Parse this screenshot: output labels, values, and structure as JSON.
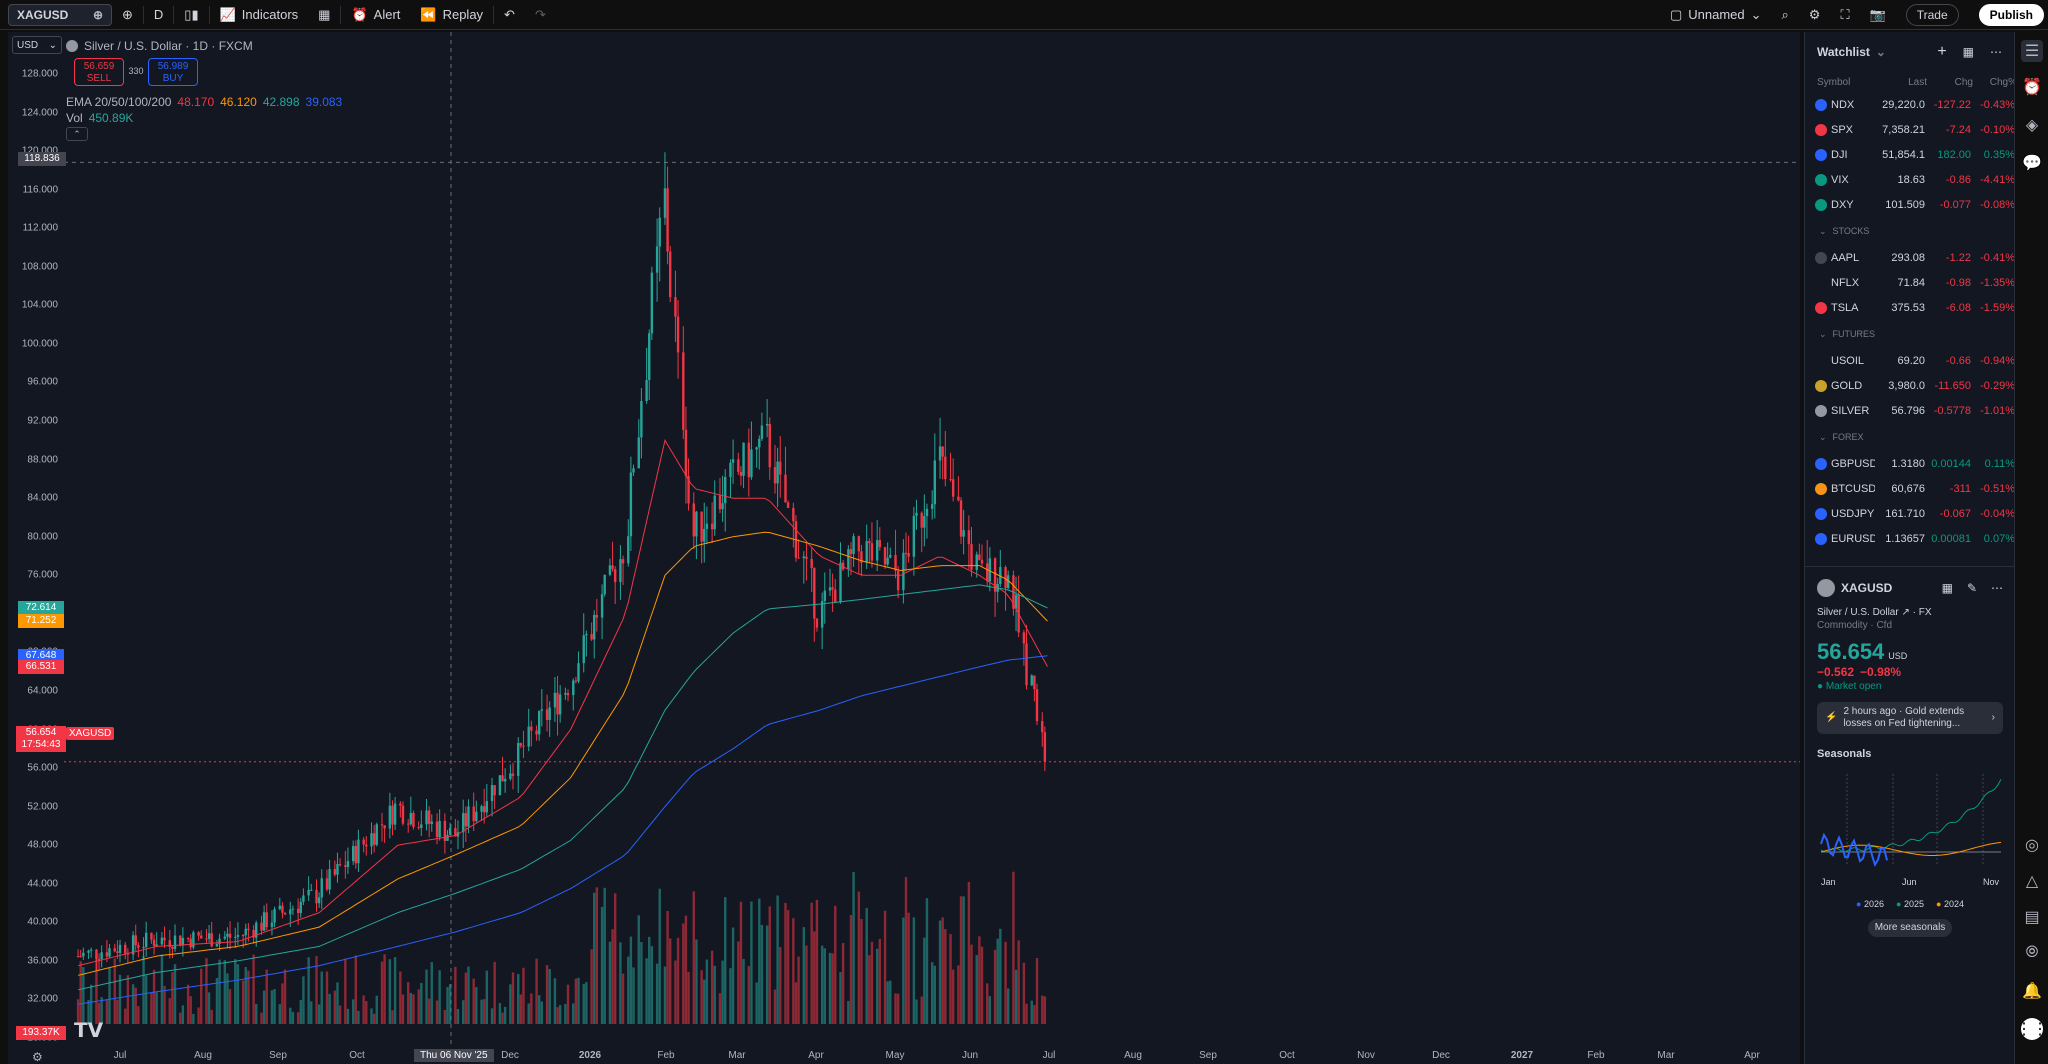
{
  "toolbar": {
    "symbol": "XAGUSD",
    "interval": "D",
    "indicators_label": "Indicators",
    "alert_label": "Alert",
    "replay_label": "Replay",
    "layout_name": "Unnamed",
    "trade_label": "Trade",
    "publish_label": "Publish"
  },
  "chart": {
    "currency_select": "USD",
    "title": "Silver / U.S. Dollar · 1D · FXCM",
    "sell_price": "56.659",
    "sell_label": "SELL",
    "spread": "330",
    "buy_price": "56.989",
    "buy_label": "BUY",
    "ema_label": "EMA 20/50/100/200",
    "ema_values": [
      "48.170",
      "46.120",
      "42.898",
      "39.083"
    ],
    "ema_colors": [
      "#f23645",
      "#ff9800",
      "#26a69a",
      "#2962ff"
    ],
    "vol_label": "Vol",
    "vol_value": "450.89K",
    "crosshair_price": "118.836",
    "crosshair_date": "Thu 06 Nov '25",
    "last_price": "56.654",
    "last_countdown": "17:54:43",
    "last_symbol": "XAGUSD",
    "tags": [
      {
        "value": "72.614",
        "color": "#26a69a"
      },
      {
        "value": "71.252",
        "color": "#ff9800"
      },
      {
        "value": "67.648",
        "color": "#2962ff"
      },
      {
        "value": "66.531",
        "color": "#f23645"
      }
    ],
    "vol_tag": "193.37K",
    "y_ticks": [
      "128.000",
      "124.000",
      "120.000",
      "116.000",
      "112.000",
      "108.000",
      "104.000",
      "100.000",
      "96.000",
      "92.000",
      "88.000",
      "84.000",
      "80.000",
      "76.000",
      "72.000",
      "68.000",
      "64.000",
      "60.000",
      "56.000",
      "52.000",
      "48.000",
      "44.000",
      "40.000",
      "36.000",
      "32.000",
      "28.000"
    ],
    "x_ticks": [
      "Jul",
      "Aug",
      "Sep",
      "Oct",
      "Dec",
      "2026",
      "Feb",
      "Mar",
      "Apr",
      "May",
      "Jun",
      "Jul",
      "Aug",
      "Sep",
      "Oct",
      "Nov",
      "Dec",
      "2027",
      "Feb",
      "Mar",
      "Apr"
    ]
  },
  "chart_data": {
    "type": "line",
    "title": "Silver / U.S. Dollar · 1D · FXCM",
    "x": [
      "2025-06-15",
      "2025-07-15",
      "2025-08-15",
      "2025-09-15",
      "2025-10-15",
      "2025-11-06",
      "2025-12-01",
      "2025-12-20",
      "2026-01-10",
      "2026-01-25",
      "2026-02-05",
      "2026-02-20",
      "2026-03-05",
      "2026-03-25",
      "2026-04-10",
      "2026-04-25",
      "2026-05-10",
      "2026-05-25",
      "2026-06-05",
      "2026-06-20"
    ],
    "series": [
      {
        "name": "XAGUSD",
        "values": [
          36.5,
          38.2,
          38.5,
          43.0,
          52.0,
          49.0,
          57.5,
          65.0,
          79.0,
          115.0,
          80.0,
          86.0,
          90.0,
          72.0,
          79.0,
          76.0,
          88.0,
          76.0,
          76.5,
          56.654
        ]
      },
      {
        "name": "EMA 20",
        "values": [
          35.5,
          37.5,
          38.0,
          41.0,
          48.0,
          49.0,
          53.0,
          60.0,
          72.0,
          90.0,
          85.0,
          84.0,
          84.0,
          78.0,
          76.0,
          76.0,
          78.0,
          76.0,
          74.0,
          66.531
        ]
      },
      {
        "name": "EMA 50",
        "values": [
          34.5,
          36.5,
          37.5,
          39.5,
          44.5,
          47.0,
          50.0,
          55.0,
          64.0,
          76.0,
          79.0,
          80.0,
          80.5,
          79.0,
          77.5,
          76.5,
          77.0,
          77.0,
          75.5,
          71.252
        ]
      },
      {
        "name": "EMA 100",
        "values": [
          33.0,
          34.8,
          36.0,
          37.5,
          41.0,
          43.0,
          45.5,
          48.5,
          54.0,
          62.0,
          66.0,
          70.0,
          72.5,
          73.0,
          73.5,
          74.0,
          74.5,
          75.0,
          74.5,
          72.614
        ]
      },
      {
        "name": "EMA 200",
        "values": [
          31.5,
          32.8,
          34.0,
          35.5,
          37.5,
          39.0,
          41.0,
          43.5,
          47.0,
          52.0,
          55.5,
          58.0,
          60.5,
          62.0,
          63.5,
          64.5,
          65.5,
          66.5,
          67.2,
          67.648
        ]
      }
    ],
    "ylim": [
      26,
      130
    ],
    "ylabel": "USD",
    "grid": false,
    "legend": "top-left"
  },
  "watchlist": {
    "title": "Watchlist",
    "columns": [
      "Symbol",
      "Last",
      "Chg",
      "Chg%"
    ],
    "indices": [
      {
        "sym": "NDX",
        "last": "29,220.0",
        "chg": "-127.22",
        "pct": "-0.43%",
        "up": false,
        "color": "#2962ff"
      },
      {
        "sym": "SPX",
        "last": "7,358.21",
        "chg": "-7.24",
        "pct": "-0.10%",
        "up": false,
        "color": "#f23645"
      },
      {
        "sym": "DJI",
        "last": "51,854.1",
        "chg": "182.00",
        "pct": "0.35%",
        "up": true,
        "color": "#2962ff"
      },
      {
        "sym": "VIX",
        "last": "18.63",
        "chg": "-0.86",
        "pct": "-4.41%",
        "up": false,
        "color": "#089981"
      },
      {
        "sym": "DXY",
        "last": "101.509",
        "chg": "-0.077",
        "pct": "-0.08%",
        "up": false,
        "color": "#089981"
      }
    ],
    "stocks_label": "STOCKS",
    "stocks": [
      {
        "sym": "AAPL",
        "last": "293.08",
        "chg": "-1.22",
        "pct": "-0.41%",
        "up": false,
        "color": "#434651"
      },
      {
        "sym": "NFLX",
        "last": "71.84",
        "chg": "-0.98",
        "pct": "-1.35%",
        "up": false,
        "color": "#131722"
      },
      {
        "sym": "TSLA",
        "last": "375.53",
        "chg": "-6.08",
        "pct": "-1.59%",
        "up": false,
        "color": "#f23645"
      }
    ],
    "futures_label": "FUTURES",
    "futures": [
      {
        "sym": "USOIL",
        "last": "69.20",
        "chg": "-0.66",
        "pct": "-0.94%",
        "up": false,
        "color": "#131722"
      },
      {
        "sym": "GOLD",
        "last": "3,980.0",
        "chg": "-11.650",
        "pct": "-0.29%",
        "up": false,
        "color": "#c9a227"
      },
      {
        "sym": "SILVER",
        "last": "56.796",
        "chg": "-0.5778",
        "pct": "-1.01%",
        "up": false,
        "color": "#9598a1"
      }
    ],
    "forex_label": "FOREX",
    "forex": [
      {
        "sym": "GBPUSD",
        "last": "1.3180",
        "chg": "0.00144",
        "pct": "0.11%",
        "up": true,
        "color": "#2962ff"
      },
      {
        "sym": "BTCUSD",
        "last": "60,676",
        "chg": "-311",
        "pct": "-0.51%",
        "up": false,
        "color": "#f7931a"
      },
      {
        "sym": "USDJPY",
        "last": "161.710",
        "chg": "-0.067",
        "pct": "-0.04%",
        "up": false,
        "color": "#2962ff"
      },
      {
        "sym": "EURUSD",
        "last": "1.13657",
        "chg": "0.00081",
        "pct": "0.07%",
        "up": true,
        "color": "#2962ff"
      }
    ]
  },
  "detail": {
    "symbol": "XAGUSD",
    "name": "Silver / U.S. Dollar",
    "exchange": "FX",
    "category": "Commodity · Cfd",
    "price": "56.654",
    "currency": "USD",
    "change": "−0.562",
    "change_pct": "−0.98%",
    "market_status": "Market open",
    "news": "2 hours ago · Gold extends losses on Fed tightening...",
    "seasonals_title": "Seasonals",
    "seasonal_months": [
      "Jan",
      "Jun",
      "Nov"
    ],
    "seasonal_years": [
      "2026",
      "2025",
      "2024"
    ],
    "more_seasonals": "More seasonals"
  }
}
